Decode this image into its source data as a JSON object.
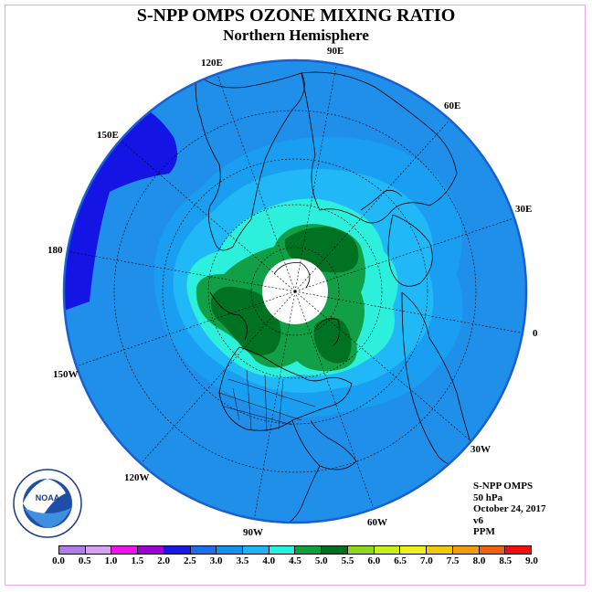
{
  "title": "S-NPP OMPS OZONE MIXING RATIO",
  "subtitle": "Northern Hemisphere",
  "longitude_labels": [
    "90E",
    "60E",
    "30E",
    "0",
    "30W",
    "60W",
    "90W",
    "120W",
    "150W",
    "180",
    "150E",
    "120E"
  ],
  "info": {
    "instrument": "S-NPP OMPS",
    "level": "50 hPa",
    "date": "October 24, 2017",
    "version": "v6",
    "units": "PPM"
  },
  "logo": {
    "text": "NOAA",
    "ring_text": "NATIONAL OCEANIC AND ATMOSPHERIC ADMINISTRATION · U.S. DEPARTMENT OF COMMERCE"
  },
  "colorbar": {
    "ticks": [
      "0.0",
      "0.5",
      "1.0",
      "1.5",
      "2.0",
      "2.5",
      "3.0",
      "3.5",
      "4.0",
      "4.5",
      "5.0",
      "5.5",
      "6.0",
      "6.5",
      "7.0",
      "7.5",
      "8.0",
      "8.5",
      "9.0"
    ],
    "colors": [
      "#b07ce8",
      "#d8a0f0",
      "#f010f0",
      "#a000d8",
      "#1818e8",
      "#1a6fea",
      "#1890f0",
      "#20b4f4",
      "#28f0e0",
      "#10a040",
      "#007020",
      "#90d820",
      "#c8f020",
      "#f0f020",
      "#f0c810",
      "#f09c10",
      "#f06010",
      "#f01010",
      "#8c5a3c"
    ]
  },
  "colors": {
    "background_field": "#1f8fea",
    "dark_blue": "#1515e6",
    "lightest_blue": "#20b4f4",
    "cyan": "#28f0e0",
    "green": "#10a040",
    "dark_green": "#007020",
    "pole_hole": "#ffffff"
  }
}
